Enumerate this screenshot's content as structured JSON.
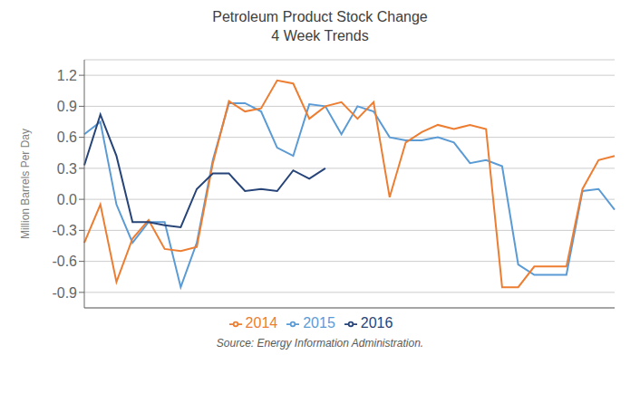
{
  "chart_data": {
    "type": "line",
    "title": "Petroleum Product Stock Change\n4 Week Trends",
    "ylabel": "Million Barrels Per Day",
    "annotations": [
      "Source: Energy Information Administration."
    ],
    "categories": [
      null,
      null,
      null,
      null,
      null,
      null,
      null,
      null,
      null,
      null,
      null,
      null,
      null,
      null,
      null,
      null,
      null,
      null,
      null,
      null,
      null,
      null,
      null,
      null,
      null,
      null,
      null,
      null,
      null,
      null,
      null,
      null,
      null,
      null
    ],
    "series": [
      {
        "name": "2015",
        "color": "#5B9BD5",
        "values": [
          0.63,
          0.75,
          -0.05,
          -0.42,
          -0.22,
          -0.22,
          -0.85,
          -0.42,
          0.38,
          0.93,
          0.93,
          0.85,
          0.5,
          0.42,
          0.92,
          0.9,
          0.63,
          0.9,
          0.85,
          0.6,
          0.57,
          0.57,
          0.6,
          0.55,
          0.35,
          0.38,
          0.32,
          -0.63,
          -0.73,
          -0.73,
          -0.73,
          0.08,
          0.1,
          -0.1
        ]
      },
      {
        "name": "2014",
        "color": "#ED7D31",
        "values": [
          -0.42,
          -0.05,
          -0.8,
          -0.38,
          -0.2,
          -0.48,
          -0.5,
          -0.46,
          0.35,
          0.95,
          0.85,
          0.88,
          1.15,
          1.12,
          0.78,
          0.9,
          0.94,
          0.78,
          0.94,
          0.02,
          0.55,
          0.65,
          0.72,
          0.68,
          0.72,
          0.68,
          -0.85,
          -0.85,
          -0.65,
          -0.65,
          -0.65,
          0.1,
          0.38,
          0.42
        ]
      },
      {
        "name": "2016",
        "color": "#264478",
        "values": [
          0.33,
          0.82,
          0.42,
          -0.22,
          -0.22,
          -0.25,
          -0.27,
          0.1,
          0.25,
          0.25,
          0.08,
          0.1,
          0.08,
          0.28,
          0.2,
          0.3,
          null,
          null,
          null,
          null,
          null,
          null,
          null,
          null,
          null,
          null,
          null,
          null,
          null,
          null,
          null,
          null,
          null,
          null
        ]
      }
    ],
    "ylim": [
      -1.05,
      1.35
    ],
    "yticks": [
      -0.9,
      -0.6,
      -0.3,
      {
        "value": 0.0,
        "label": "0.0"
      },
      0.3,
      0.6,
      0.9,
      1.2
    ],
    "grid": true,
    "legend": "bottom",
    "tick_labels": "y"
  }
}
